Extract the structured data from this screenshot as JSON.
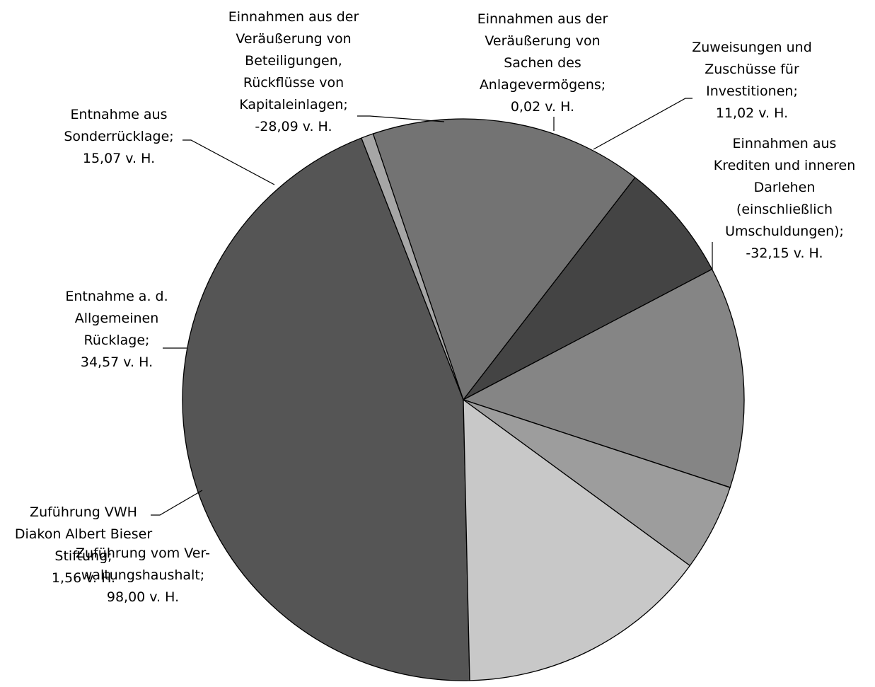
{
  "chart_data": {
    "type": "pie",
    "title": "",
    "slices": [
      {
        "label": "Zuführung vom Verwaltungshaushalt",
        "display_value": "98,00 v. H.",
        "value": 98.0,
        "color": "#555555",
        "label_lines": [
          "Zuführung vom Ver-",
          "waltungshaushalt;",
          "98,00 v. H."
        ]
      },
      {
        "label": "Zuführung VWH Diakon Albert Bieser Stiftung",
        "display_value": "1,56 v. H.",
        "value": 1.56,
        "color": "#a6a6a6",
        "label_lines": [
          "Zuführung VWH",
          "Diakon Albert Bieser",
          "Stiftung;",
          "1,56 v. H."
        ]
      },
      {
        "label": "Entnahme a. d. Allgemeinen Rücklage",
        "display_value": "34,57 v. H.",
        "value": 34.57,
        "color": "#737373",
        "label_lines": [
          "Entnahme a. d.",
          "Allgemeinen",
          "Rücklage;",
          "34,57 v. H."
        ]
      },
      {
        "label": "Entnahme aus Sonderrücklage",
        "display_value": "15,07 v. H.",
        "value": 15.07,
        "color": "#444444",
        "label_lines": [
          "Entnahme aus",
          "Sonderrücklage;",
          "15,07 v. H."
        ]
      },
      {
        "label": "Einnahmen aus der Veräußerung von Beteiligungen, Rückflüsse von Kapitaleinlagen",
        "display_value": "-28,09 v. H.",
        "value": -28.09,
        "color": "#858585",
        "label_lines": [
          "Einnahmen aus der",
          "Veräußerung von",
          "Beteiligungen,",
          "Rückflüsse von",
          "Kapitaleinlagen;",
          "-28,09 v. H."
        ]
      },
      {
        "label": "Einnahmen aus der Veräußerung von Sachen des Anlagevermögens",
        "display_value": "0,02 v. H.",
        "value": 0.02,
        "color": "#2f2f2f",
        "label_lines": [
          "Einnahmen aus der",
          "Veräußerung von",
          "Sachen des",
          "Anlagevermögens;",
          "0,02 v. H."
        ]
      },
      {
        "label": "Zuweisungen und Zuschüsse für Investitionen",
        "display_value": "11,02 v. H.",
        "value": 11.02,
        "color": "#9d9d9d",
        "label_lines": [
          "Zuweisungen und",
          "Zuschüsse für",
          "Investitionen;",
          "11,02 v. H."
        ]
      },
      {
        "label": "Einnahmen aus Krediten und inneren Darlehen (einschließlich Umschuldungen)",
        "display_value": "-32,15 v. H.",
        "value": -32.15,
        "color": "#c8c8c8",
        "label_lines": [
          "Einnahmen aus",
          "Krediten und inneren",
          "Darlehen",
          "(einschließlich",
          "Umschuldungen);",
          "-32,15 v. H."
        ]
      }
    ]
  }
}
